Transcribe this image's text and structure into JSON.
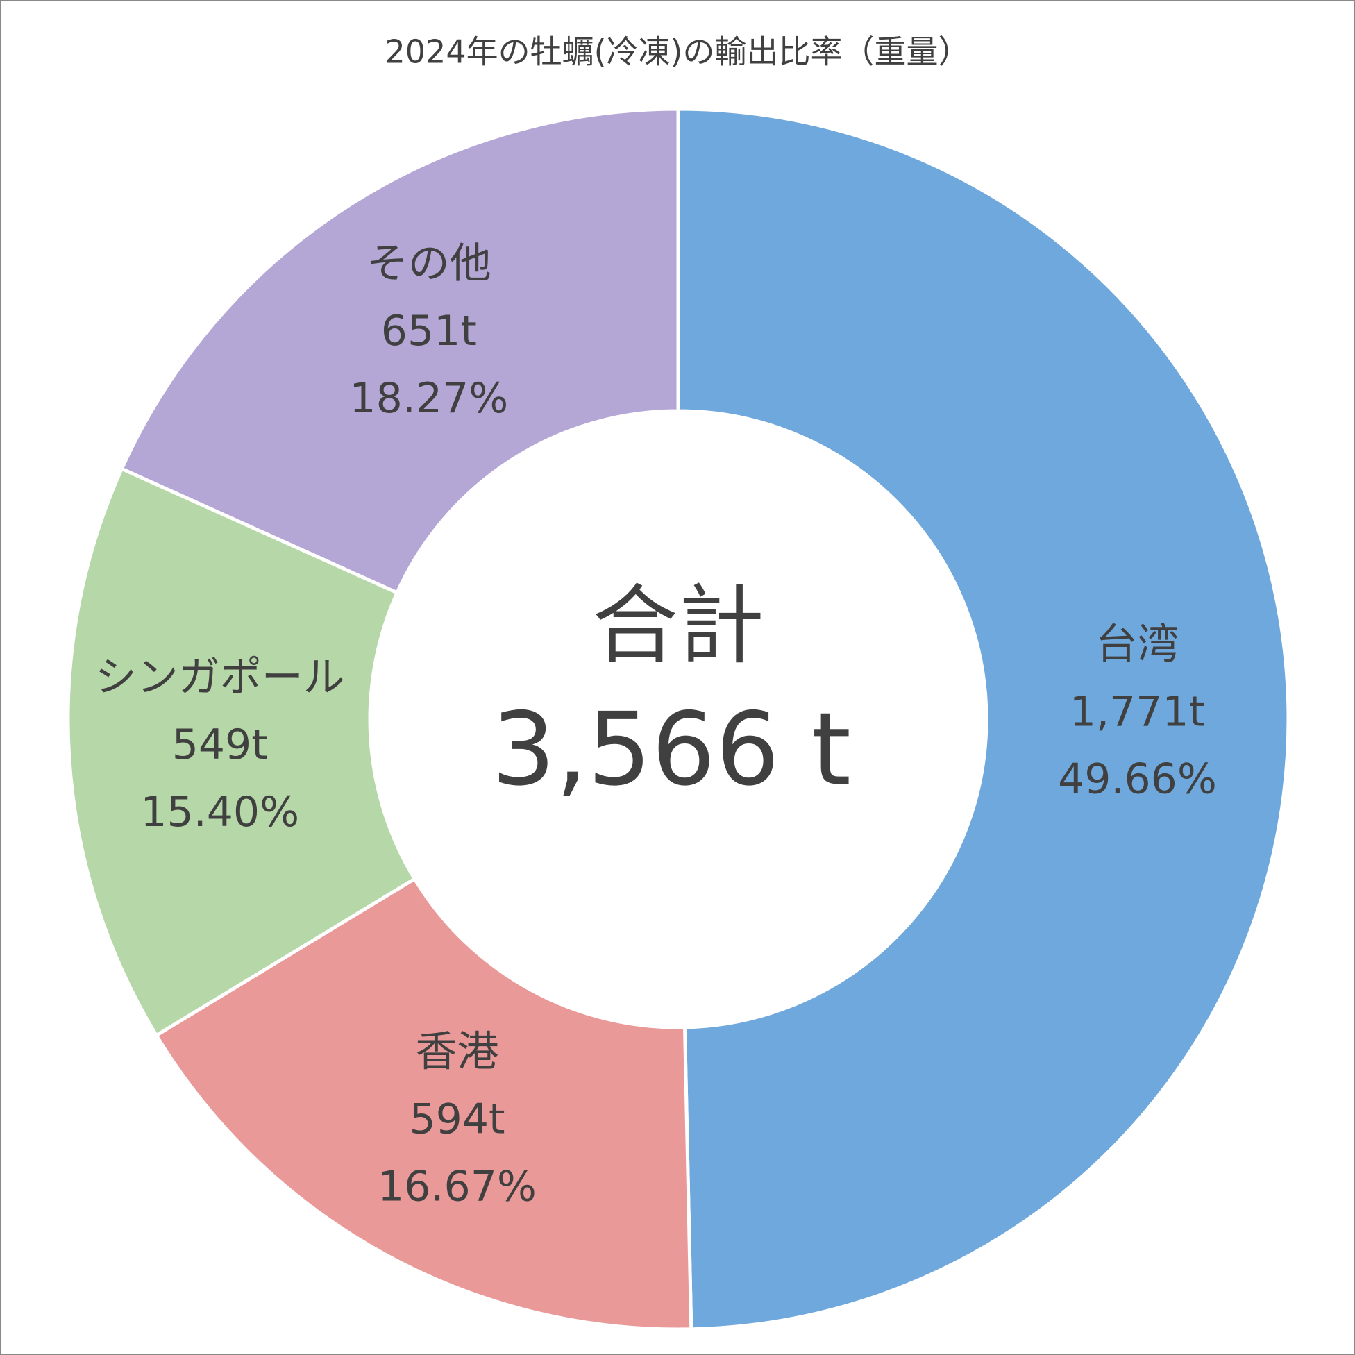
{
  "chart_data": {
    "type": "donut",
    "title": "2024年の牡蠣(冷凍)の輸出比率（重量）",
    "categories": [
      "台湾",
      "香港",
      "シンガポール",
      "その他"
    ],
    "values": [
      1771,
      594,
      549,
      651
    ],
    "value_labels": [
      "1,771t",
      "594t",
      "549t",
      "651t"
    ],
    "percentages": [
      49.66,
      16.67,
      15.4,
      18.27
    ],
    "percentage_labels": [
      "49.66%",
      "16.67%",
      "15.40%",
      "18.27%"
    ],
    "colors": [
      "#6fa8dc",
      "#ea9999",
      "#b6d7a8",
      "#b4a7d6"
    ],
    "center_title": "合計",
    "total": 3566,
    "total_label": "3,566 t"
  }
}
